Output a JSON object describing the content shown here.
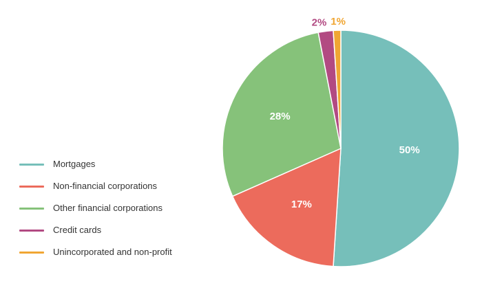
{
  "chart_data": {
    "type": "pie",
    "categories": [
      "Mortgages",
      "Non-financial corporations",
      "Other financial corporations",
      "Credit cards",
      "Unincorporated and non-profit"
    ],
    "values": [
      50,
      17,
      28,
      2,
      1
    ],
    "data_labels": [
      "50%",
      "17%",
      "28%",
      "2%",
      "1%"
    ],
    "colors": [
      "#76bfba",
      "#ec6b5c",
      "#86c27a",
      "#b24a82",
      "#f0a633"
    ],
    "label_colors": [
      "#ffffff",
      "#ffffff",
      "#ffffff",
      "#b24a82",
      "#f0a633"
    ],
    "start_angle_deg": 0,
    "direction": "clockwise",
    "legend_position": "left",
    "title": "",
    "xlabel": "",
    "ylabel": ""
  }
}
